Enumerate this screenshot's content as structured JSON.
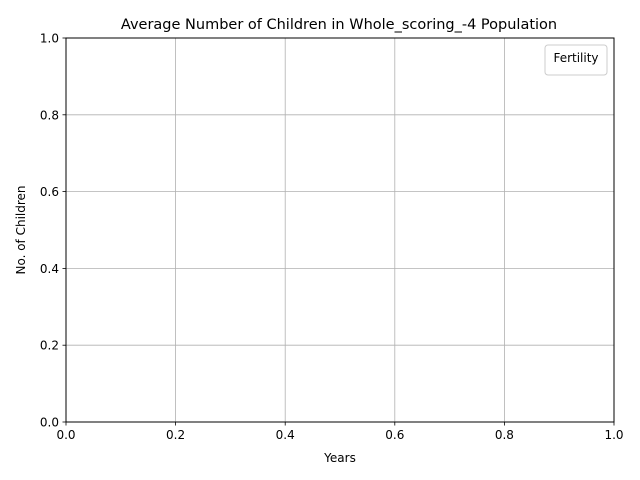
{
  "chart_data": {
    "type": "line",
    "title": "Average Number of Children in Whole_scoring_-4 Population",
    "xlabel": "Years",
    "ylabel": "No. of Children",
    "xlim": [
      0.0,
      1.0
    ],
    "ylim": [
      0.0,
      1.0
    ],
    "x_ticks": [
      "0.0",
      "0.2",
      "0.4",
      "0.6",
      "0.8",
      "1.0"
    ],
    "y_ticks": [
      "0.0",
      "0.2",
      "0.4",
      "0.6",
      "0.8",
      "1.0"
    ],
    "grid": true,
    "legend": {
      "title": "Fertility",
      "placement": "top-right",
      "entries": []
    },
    "series": []
  },
  "colors": {
    "grid": "#b0b0b0",
    "axes": "#000000",
    "background": "#ffffff"
  }
}
